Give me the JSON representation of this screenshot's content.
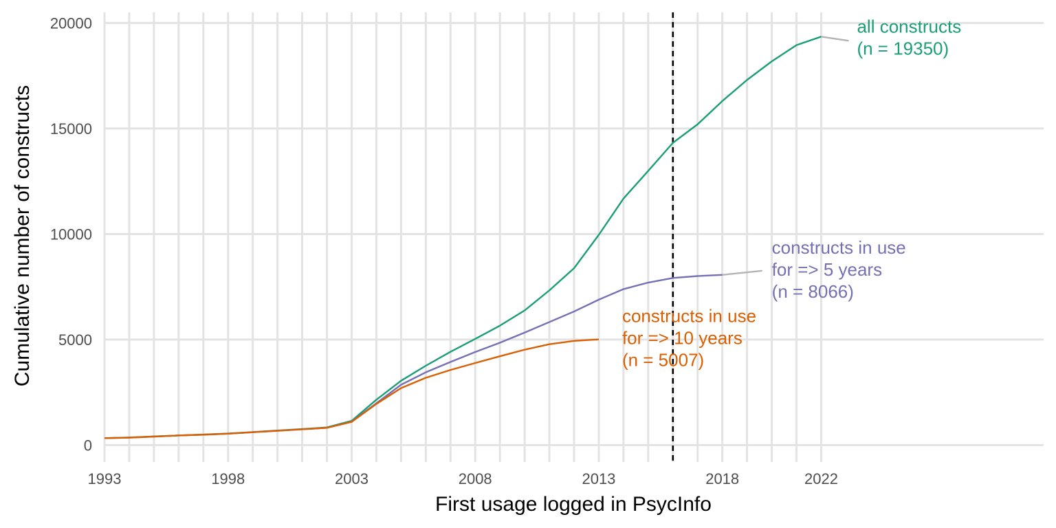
{
  "chart_data": {
    "type": "line",
    "title": "",
    "xlabel": "First usage logged in PsycInfo",
    "ylabel": "Cumulative number of constructs",
    "xlim": [
      1993,
      2031
    ],
    "ylim": [
      -800,
      20500
    ],
    "x_ticks": [
      1993,
      1998,
      2003,
      2008,
      2013,
      2018,
      2022
    ],
    "y_ticks": [
      0,
      5000,
      10000,
      15000,
      20000
    ],
    "reference_line": {
      "x": 2016,
      "style": "dashed"
    },
    "grid": true,
    "series": [
      {
        "key": "all",
        "color": "#1b9e77",
        "label_lines": [
          "all constructs",
          "(n = 19350)"
        ],
        "x": [
          1993,
          1994,
          1995,
          1996,
          1997,
          1998,
          1999,
          2000,
          2001,
          2002,
          2003,
          2004,
          2005,
          2006,
          2007,
          2008,
          2009,
          2010,
          2011,
          2012,
          2013,
          2014,
          2015,
          2016,
          2017,
          2018,
          2019,
          2020,
          2021,
          2022
        ],
        "values": [
          330,
          360,
          410,
          460,
          500,
          550,
          620,
          690,
          760,
          840,
          1150,
          2150,
          3050,
          3760,
          4420,
          5030,
          5660,
          6380,
          7330,
          8380,
          9960,
          11680,
          12990,
          14320,
          15200,
          16300,
          17300,
          18180,
          18950,
          19350
        ]
      },
      {
        "key": "five_years",
        "color": "#7570b3",
        "label_lines": [
          "constructs in use",
          "for => 5 years",
          "(n = 8066)"
        ],
        "x": [
          1993,
          1994,
          1995,
          1996,
          1997,
          1998,
          1999,
          2000,
          2001,
          2002,
          2003,
          2004,
          2005,
          2006,
          2007,
          2008,
          2009,
          2010,
          2011,
          2012,
          2013,
          2014,
          2015,
          2016,
          2017,
          2018
        ],
        "values": [
          330,
          355,
          405,
          455,
          495,
          540,
          610,
          680,
          750,
          820,
          1110,
          1980,
          2860,
          3450,
          3940,
          4410,
          4850,
          5330,
          5830,
          6330,
          6890,
          7390,
          7700,
          7920,
          8010,
          8066
        ]
      },
      {
        "key": "ten_years",
        "color": "#d95f02",
        "label_lines": [
          "constructs in use",
          "for => 10 years",
          "(n = 5007)"
        ],
        "x": [
          1993,
          1994,
          1995,
          1996,
          1997,
          1998,
          1999,
          2000,
          2001,
          2002,
          2003,
          2004,
          2005,
          2006,
          2007,
          2008,
          2009,
          2010,
          2011,
          2012,
          2013
        ],
        "values": [
          330,
          355,
          405,
          455,
          495,
          540,
          610,
          680,
          750,
          820,
          1100,
          1950,
          2700,
          3190,
          3560,
          3890,
          4210,
          4520,
          4780,
          4940,
          5007
        ]
      }
    ]
  }
}
